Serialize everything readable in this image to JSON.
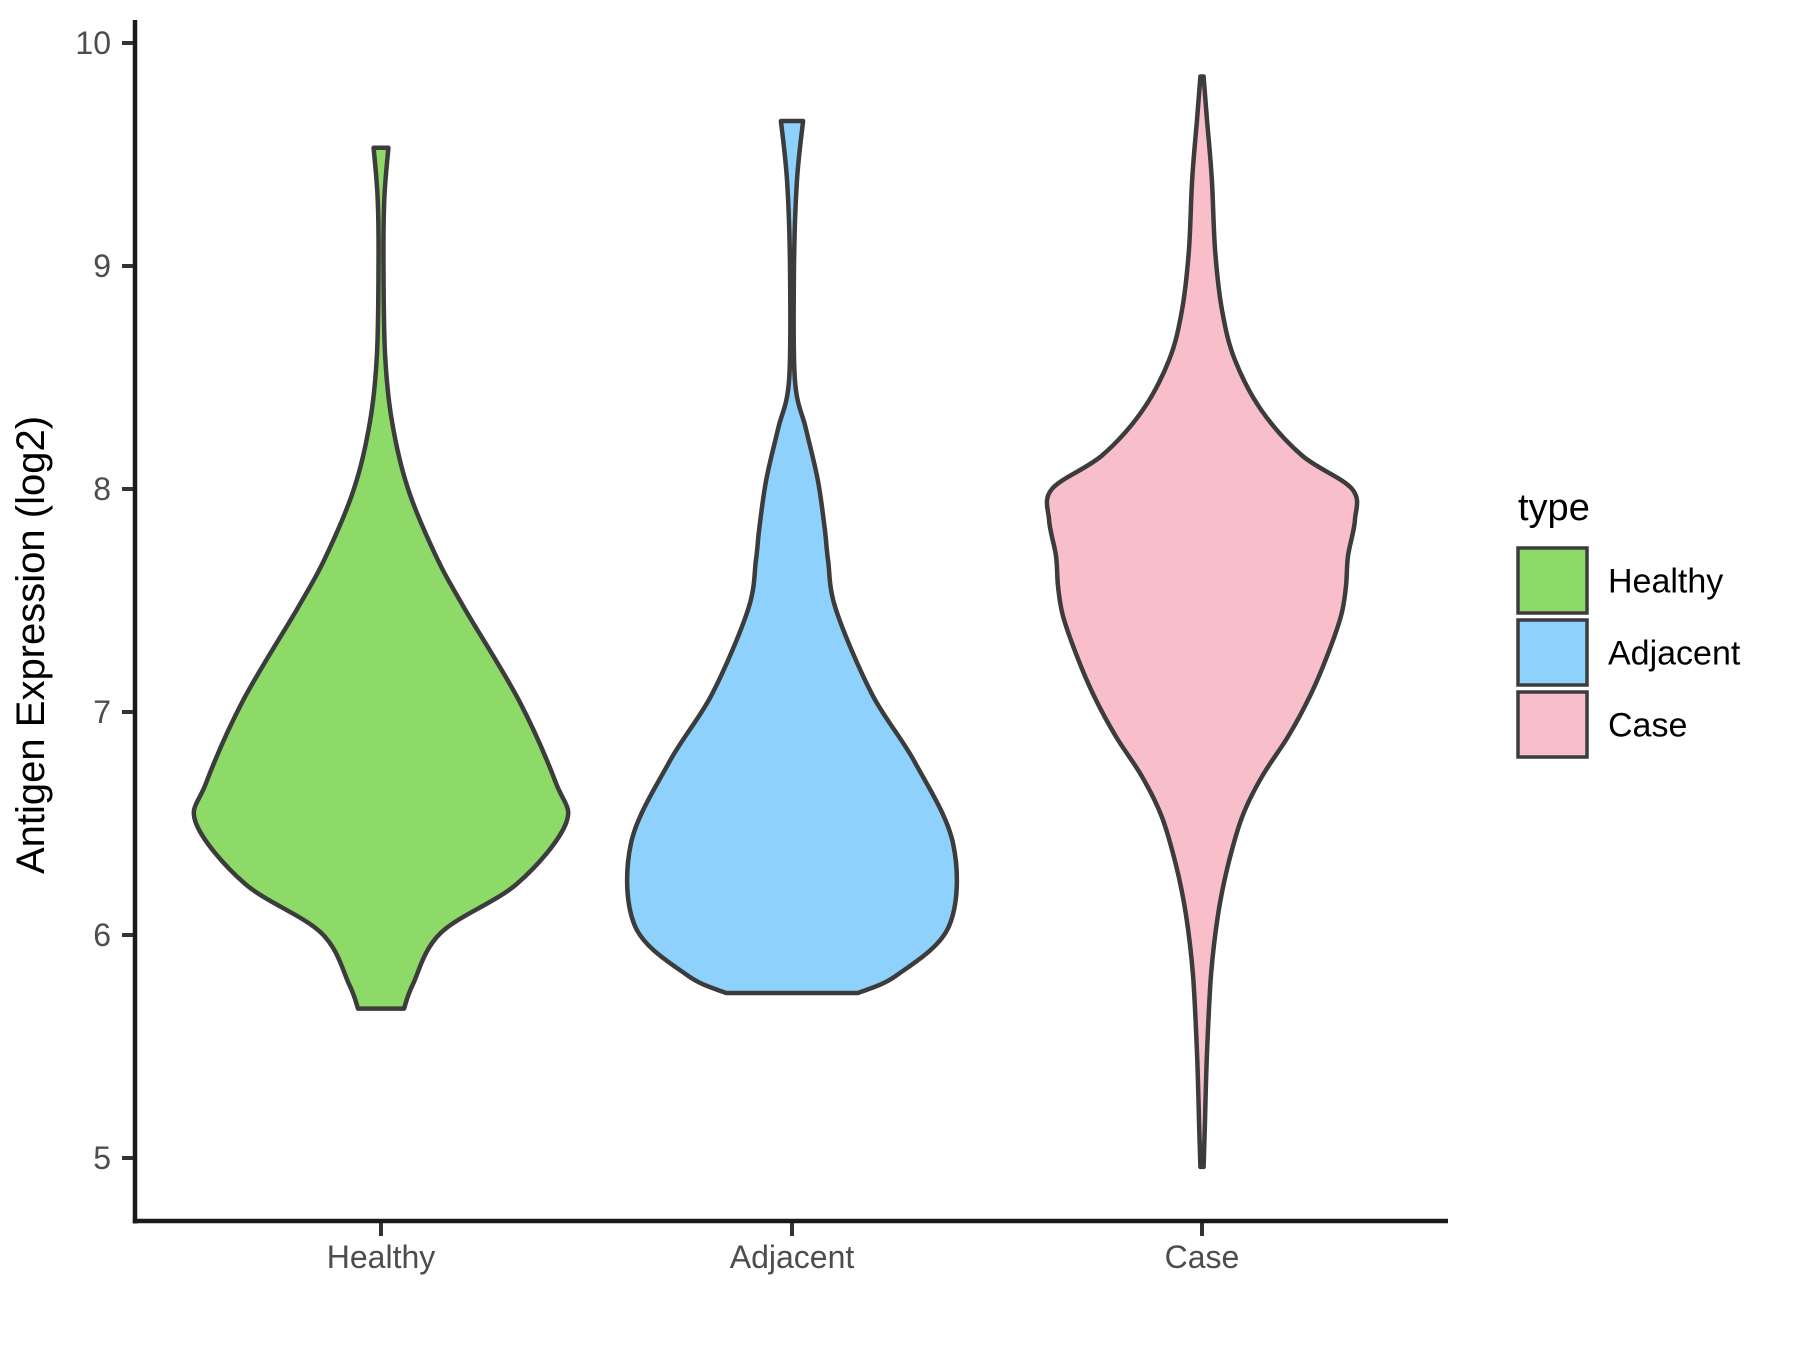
{
  "figure": {
    "background": "#ffffff"
  },
  "y_axis": {
    "title": "Antigen Expression (log2)",
    "tick_labels": [
      "10",
      "9",
      "8",
      "7",
      "6",
      "5"
    ],
    "tick_values": [
      10,
      9,
      8,
      7,
      6,
      5
    ]
  },
  "x_axis": {
    "categories": [
      "Healthy",
      "Adjacent",
      "Case"
    ]
  },
  "legend": {
    "title": "type",
    "entries": [
      {
        "label": "Healthy",
        "color": "#8DDA69"
      },
      {
        "label": "Adjacent",
        "color": "#8ED1FD"
      },
      {
        "label": "Case",
        "color": "#F8BFCB"
      }
    ]
  },
  "styles": {
    "violin_outline": "#3C3C3C",
    "axis_line_color": "#1A1A1A",
    "tick_mark_color": "#333333",
    "tick_label_color": "#4D4D4D",
    "title_color": "#000000"
  },
  "chart_data": {
    "type": "violin",
    "title": "",
    "xlabel": "",
    "ylabel": "Antigen Expression (log2)",
    "ylim": [
      4.7,
      10.1
    ],
    "yticks": [
      5,
      6,
      7,
      8,
      9,
      10
    ],
    "grid": false,
    "legend_position": "right",
    "categories": [
      "Healthy",
      "Adjacent",
      "Case"
    ],
    "series": [
      {
        "name": "Healthy",
        "color": "#8DDA69",
        "value_range": [
          5.67,
          9.53
        ],
        "truncated_top": true,
        "truncated_bottom": true,
        "profile": [
          [
            9.53,
            0.018
          ],
          [
            9.3,
            0.008
          ],
          [
            9.0,
            0.006
          ],
          [
            8.6,
            0.01
          ],
          [
            8.3,
            0.027
          ],
          [
            8.0,
            0.066
          ],
          [
            7.7,
            0.134
          ],
          [
            7.47,
            0.202
          ],
          [
            7.05,
            0.337
          ],
          [
            6.68,
            0.427
          ],
          [
            6.5,
            0.451
          ],
          [
            6.23,
            0.332
          ],
          [
            6.01,
            0.146
          ],
          [
            5.78,
            0.078
          ],
          [
            5.67,
            0.056
          ]
        ]
      },
      {
        "name": "Adjacent",
        "color": "#8ED1FD",
        "value_range": [
          5.74,
          9.65
        ],
        "truncated_top": true,
        "truncated_bottom": true,
        "profile": [
          [
            9.65,
            0.027
          ],
          [
            9.38,
            0.012
          ],
          [
            9.0,
            0.005
          ],
          [
            8.49,
            0.007
          ],
          [
            8.27,
            0.034
          ],
          [
            8.04,
            0.063
          ],
          [
            7.82,
            0.08
          ],
          [
            7.68,
            0.088
          ],
          [
            7.46,
            0.107
          ],
          [
            7.08,
            0.195
          ],
          [
            6.78,
            0.298
          ],
          [
            6.41,
            0.393
          ],
          [
            6.04,
            0.383
          ],
          [
            5.82,
            0.256
          ],
          [
            5.74,
            0.161
          ]
        ]
      },
      {
        "name": "Case",
        "color": "#F8BFCB",
        "value_range": [
          4.96,
          9.85
        ],
        "truncated_top": false,
        "truncated_bottom": false,
        "profile": [
          [
            9.85,
            0.004
          ],
          [
            9.66,
            0.012
          ],
          [
            9.39,
            0.024
          ],
          [
            9.07,
            0.032
          ],
          [
            8.8,
            0.049
          ],
          [
            8.58,
            0.08
          ],
          [
            8.35,
            0.146
          ],
          [
            8.15,
            0.244
          ],
          [
            8.0,
            0.366
          ],
          [
            7.86,
            0.373
          ],
          [
            7.7,
            0.356
          ],
          [
            7.56,
            0.351
          ],
          [
            7.43,
            0.339
          ],
          [
            7.25,
            0.305
          ],
          [
            7.07,
            0.263
          ],
          [
            6.89,
            0.21
          ],
          [
            6.71,
            0.146
          ],
          [
            6.53,
            0.098
          ],
          [
            6.31,
            0.063
          ],
          [
            6.09,
            0.039
          ],
          [
            5.82,
            0.022
          ],
          [
            5.46,
            0.012
          ],
          [
            5.15,
            0.007
          ],
          [
            4.96,
            0.004
          ]
        ]
      }
    ]
  }
}
